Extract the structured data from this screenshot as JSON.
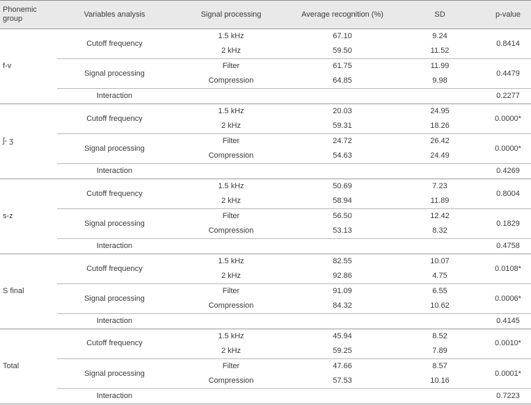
{
  "headers": {
    "group": "Phonemic group",
    "variables": "Variables analysis",
    "signal": "Signal processing",
    "avg": "Average recognition (%)",
    "sd": "SD",
    "pvalue": "p-value"
  },
  "groups": [
    {
      "name": "f-v",
      "cutoff": {
        "label": "Cutoff frequency",
        "a": "1.5 kHz",
        "a_avg": "67.10",
        "a_sd": "9.24",
        "b": "2 kHz",
        "b_avg": "59.50",
        "b_sd": "11.52",
        "p": "0.8414"
      },
      "signal": {
        "label": "Signal processing",
        "a": "Filter",
        "a_avg": "61.75",
        "a_sd": "11.99",
        "b": "Compression",
        "b_avg": "64.85",
        "b_sd": "9.98",
        "p": "0.4479"
      },
      "interaction": {
        "label": "Interaction",
        "p": "0.2277"
      }
    },
    {
      "name": "ʃ- ʒ",
      "cutoff": {
        "label": "Cutoff frequency",
        "a": "1.5 kHz",
        "a_avg": "20.03",
        "a_sd": "24.95",
        "b": "2 kHz",
        "b_avg": "59.31",
        "b_sd": "18.26",
        "p": "0.0000*"
      },
      "signal": {
        "label": "Signal processing",
        "a": "Filter",
        "a_avg": "24.72",
        "a_sd": "26.42",
        "b": "Compression",
        "b_avg": "54.63",
        "b_sd": "24.49",
        "p": "0.0000*"
      },
      "interaction": {
        "label": "Interaction",
        "p": "0.4269"
      }
    },
    {
      "name": "s-z",
      "cutoff": {
        "label": "Cutoff frequency",
        "a": "1.5 kHz",
        "a_avg": "50.69",
        "a_sd": "7.23",
        "b": "2 kHz",
        "b_avg": "58.94",
        "b_sd": "11.89",
        "p": "0.8004"
      },
      "signal": {
        "label": "Signal processing",
        "a": "Filter",
        "a_avg": "56.50",
        "a_sd": "12.42",
        "b": "Compression",
        "b_avg": "53.13",
        "b_sd": "8.32",
        "p": "0.1829"
      },
      "interaction": {
        "label": "Interaction",
        "p": "0.4758"
      }
    },
    {
      "name": "S final",
      "cutoff": {
        "label": "Cutoff frequency",
        "a": "1.5 kHz",
        "a_avg": "82.55",
        "a_sd": "10.07",
        "b": "2 kHz",
        "b_avg": "92.86",
        "b_sd": "4.75",
        "p": "0.0108*"
      },
      "signal": {
        "label": "Signal processing",
        "a": "Filter",
        "a_avg": "91.09",
        "a_sd": "6.55",
        "b": "Compression",
        "b_avg": "84.32",
        "b_sd": "10.62",
        "p": "0.0006*"
      },
      "interaction": {
        "label": "Interaction",
        "p": "0.4145"
      }
    },
    {
      "name": "Total",
      "cutoff": {
        "label": "Cutoff frequency",
        "a": "1.5 kHz",
        "a_avg": "45.94",
        "a_sd": "8.52",
        "b": "2 kHz",
        "b_avg": "59.25",
        "b_sd": "7.89",
        "p": "0.0010*"
      },
      "signal": {
        "label": "Signal processing",
        "a": "Filter",
        "a_avg": "47.66",
        "a_sd": "8.57",
        "b": "Compression",
        "b_avg": "57.53",
        "b_sd": "10.16",
        "p": "0.0001*"
      },
      "interaction": {
        "label": "Interaction",
        "p": "0.7223"
      }
    }
  ]
}
